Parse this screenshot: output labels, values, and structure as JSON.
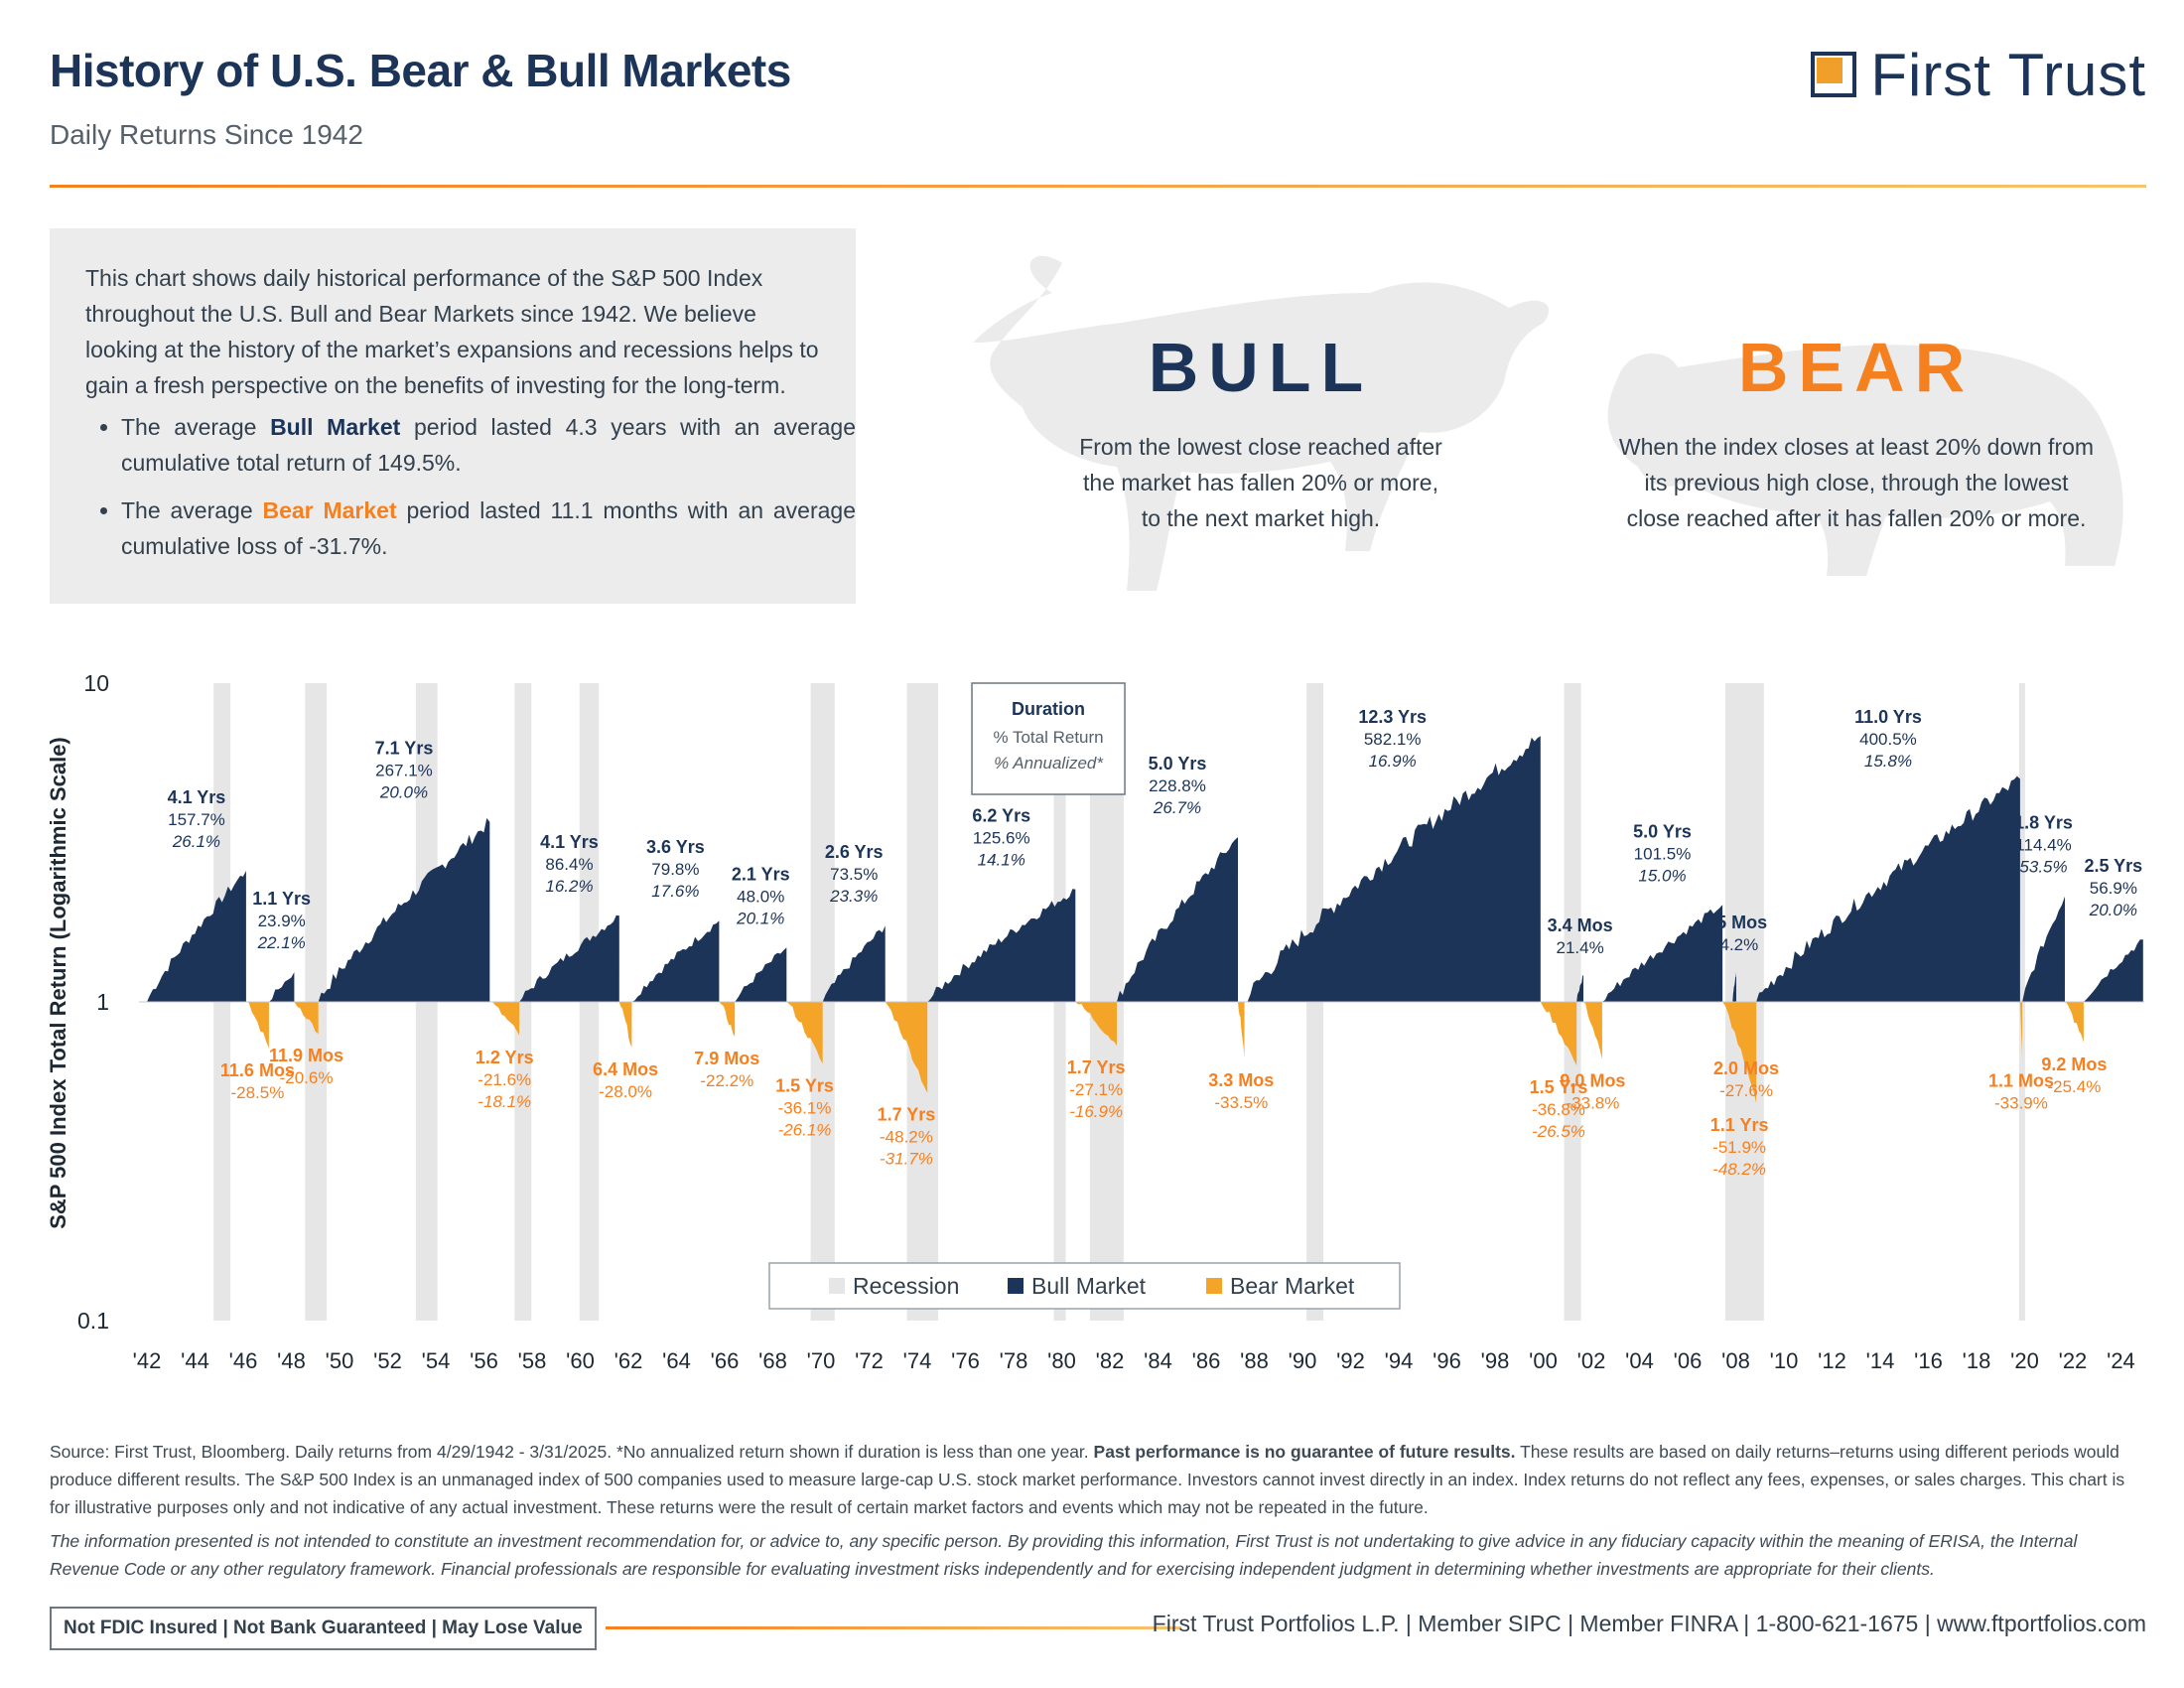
{
  "header": {
    "title": "History of U.S. Bear & Bull Markets",
    "subtitle": "Daily Returns Since 1942",
    "logo_text": "First Trust"
  },
  "intro": {
    "paragraph": "This chart shows daily historical performance of the S&P 500 Index throughout the U.S. Bull and Bear Markets since 1942. We believe looking at the history of the market’s expansions and recessions helps to gain a fresh perspective on the benefits of investing for the long-term.",
    "bullet1_pre": "The average",
    "bullet1_term": "Bull Market",
    "bullet1_post": "period lasted 4.3 years with an average cumulative total return of 149.5%.",
    "bullet2_pre": "The average",
    "bullet2_term": "Bear Market",
    "bullet2_post": "period lasted 11.1 months with an average cumulative loss of -31.7%."
  },
  "definitions": {
    "bull_heading": "BULL",
    "bull_text": [
      "From the lowest close reached after",
      "the market has fallen 20% or more,",
      "to the next market high."
    ],
    "bear_heading": "BEAR",
    "bear_text": [
      "When the index closes at least 20% down from",
      "its previous high close, through the lowest",
      "close reached after it has fallen 20% or more."
    ]
  },
  "colors": {
    "bull": "#1c3458",
    "bear": "#f5a42a",
    "bear_text": "#f58020",
    "recession": "#e6e6e6"
  },
  "chart_data": {
    "type": "area",
    "ylabel": "S&P 500 Index Total Return (Logarithmic Scale)",
    "yscale": "log",
    "ylim": [
      0.1,
      10
    ],
    "yticks": [
      "10",
      "1",
      "0.1"
    ],
    "xlim": [
      1942,
      2025.3
    ],
    "xticks": [
      "'42",
      "'44",
      "'46",
      "'48",
      "'50",
      "'52",
      "'54",
      "'56",
      "'58",
      "'60",
      "'62",
      "'64",
      "'66",
      "'68",
      "'70",
      "'72",
      "'74",
      "'76",
      "'78",
      "'80",
      "'82",
      "'84",
      "'86",
      "'88",
      "'90",
      "'92",
      "'94",
      "'96",
      "'98",
      "'00",
      "'02",
      "'04",
      "'06",
      "'08",
      "'10",
      "'12",
      "'14",
      "'16",
      "'18",
      "'20",
      "'22",
      "'24"
    ],
    "key": {
      "title": "Duration",
      "line2": "% Total Return",
      "line3": "% Annualized*"
    },
    "legend": {
      "placement": "bottom-center",
      "items": [
        "Recession",
        "Bull Market",
        "Bear Market"
      ]
    },
    "recessions": [
      [
        1945.1,
        1945.8
      ],
      [
        1948.9,
        1949.8
      ],
      [
        1953.5,
        1954.4
      ],
      [
        1957.6,
        1958.3
      ],
      [
        1960.3,
        1961.1
      ],
      [
        1969.9,
        1970.9
      ],
      [
        1973.9,
        1975.2
      ],
      [
        1980.0,
        1980.5
      ],
      [
        1981.5,
        1982.9
      ],
      [
        1990.5,
        1991.2
      ],
      [
        2001.2,
        2001.9
      ],
      [
        2007.9,
        2009.5
      ],
      [
        2020.1,
        2020.3
      ]
    ],
    "bull_markets": [
      {
        "start": 1942.33,
        "end": 1946.45,
        "duration": "4.1 Yrs",
        "total": "157.7%",
        "annualized": "26.1%",
        "return": 1.577
      },
      {
        "start": 1947.4,
        "end": 1948.45,
        "duration": "1.1 Yrs",
        "total": "23.9%",
        "annualized": "22.1%",
        "return": 0.239
      },
      {
        "start": 1949.45,
        "end": 1956.57,
        "duration": "7.1 Yrs",
        "total": "267.1%",
        "annualized": "20.0%",
        "return": 2.671
      },
      {
        "start": 1957.8,
        "end": 1961.95,
        "duration": "4.1 Yrs",
        "total": "86.4%",
        "annualized": "16.2%",
        "return": 0.864
      },
      {
        "start": 1962.47,
        "end": 1966.1,
        "duration": "3.6 Yrs",
        "total": "79.8%",
        "annualized": "17.6%",
        "return": 0.798
      },
      {
        "start": 1966.75,
        "end": 1968.9,
        "duration": "2.1 Yrs",
        "total": "48.0%",
        "annualized": "20.1%",
        "return": 0.48
      },
      {
        "start": 1970.4,
        "end": 1973.0,
        "duration": "2.6 Yrs",
        "total": "73.5%",
        "annualized": "23.3%",
        "return": 0.735
      },
      {
        "start": 1974.75,
        "end": 1980.9,
        "duration": "6.2 Yrs",
        "total": "125.6%",
        "annualized": "14.1%",
        "return": 1.256
      },
      {
        "start": 1982.62,
        "end": 1987.65,
        "duration": "5.0 Yrs",
        "total": "228.8%",
        "annualized": "26.7%",
        "return": 2.288
      },
      {
        "start": 1987.92,
        "end": 2000.22,
        "duration": "12.3 Yrs",
        "total": "582.1%",
        "annualized": "16.9%",
        "return": 5.821
      },
      {
        "start": 2001.72,
        "end": 2002.0,
        "duration": "3.4 Mos",
        "total": "21.4%",
        "annualized": "",
        "return": 0.214
      },
      {
        "start": 2002.78,
        "end": 2007.78,
        "duration": "5.0 Yrs",
        "total": "101.5%",
        "annualized": "15.0%",
        "return": 1.015
      },
      {
        "start": 2008.2,
        "end": 2008.35,
        "duration": "1.5 Mos",
        "total": "24.2%",
        "annualized": "",
        "return": 0.242
      },
      {
        "start": 2009.18,
        "end": 2020.14,
        "duration": "11.0 Yrs",
        "total": "400.5%",
        "annualized": "15.8%",
        "return": 4.005
      },
      {
        "start": 2020.23,
        "end": 2022.0,
        "duration": "1.8 Yrs",
        "total": "114.4%",
        "annualized": "53.5%",
        "return": 1.144
      },
      {
        "start": 2022.78,
        "end": 2025.25,
        "duration": "2.5 Yrs",
        "total": "56.9%",
        "annualized": "20.0%",
        "return": 0.569
      }
    ],
    "bear_markets": [
      {
        "start": 1946.45,
        "end": 1947.4,
        "duration": "11.6 Mos",
        "total": "-28.5%",
        "annualized": "",
        "return": -0.285
      },
      {
        "start": 1948.45,
        "end": 1949.45,
        "duration": "11.9 Mos",
        "total": "-20.6%",
        "annualized": "",
        "return": -0.206
      },
      {
        "start": 1956.57,
        "end": 1957.8,
        "duration": "1.2 Yrs",
        "total": "-21.6%",
        "annualized": "-18.1%",
        "return": -0.216
      },
      {
        "start": 1961.95,
        "end": 1962.47,
        "duration": "6.4 Mos",
        "total": "-28.0%",
        "annualized": "",
        "return": -0.28
      },
      {
        "start": 1966.1,
        "end": 1966.75,
        "duration": "7.9 Mos",
        "total": "-22.2%",
        "annualized": "",
        "return": -0.222
      },
      {
        "start": 1968.9,
        "end": 1970.4,
        "duration": "1.5 Yrs",
        "total": "-36.1%",
        "annualized": "-26.1%",
        "return": -0.361
      },
      {
        "start": 1973.0,
        "end": 1974.75,
        "duration": "1.7 Yrs",
        "total": "-48.2%",
        "annualized": "-31.7%",
        "return": -0.482
      },
      {
        "start": 1980.9,
        "end": 1982.62,
        "duration": "1.7 Yrs",
        "total": "-27.1%",
        "annualized": "-16.9%",
        "return": -0.271
      },
      {
        "start": 1987.65,
        "end": 1987.92,
        "duration": "3.3 Mos",
        "total": "-33.5%",
        "annualized": "",
        "return": -0.335
      },
      {
        "start": 2000.22,
        "end": 2001.72,
        "duration": "1.5 Yrs",
        "total": "-36.8%",
        "annualized": "-26.5%",
        "return": -0.368
      },
      {
        "start": 2002.0,
        "end": 2002.78,
        "duration": "9.0 Mos",
        "total": "-33.8%",
        "annualized": "",
        "return": -0.338
      },
      {
        "start": 2007.78,
        "end": 2009.18,
        "duration": "1.1 Yrs",
        "total": "-51.9%",
        "annualized": "-48.2%",
        "return": -0.519
      },
      {
        "start": 2008.35,
        "end": 2009.18,
        "duration": "2.0 Mos",
        "total": "-27.6%",
        "annualized": "",
        "return": -0.276
      },
      {
        "start": 2020.14,
        "end": 2020.23,
        "duration": "1.1 Mos",
        "total": "-33.9%",
        "annualized": "",
        "return": -0.339
      },
      {
        "start": 2022.0,
        "end": 2022.78,
        "duration": "9.2 Mos",
        "total": "-25.4%",
        "annualized": "",
        "return": -0.254
      }
    ]
  },
  "footer": {
    "source": "Source: First Trust, Bloomberg. Daily returns from 4/29/1942 - 3/31/2025. *No annualized return shown if duration is less than one year.",
    "source_bold": "Past performance is no guarantee of future results.",
    "source_rest": "These results are based on daily returns–returns using different periods would produce different results. The S&P 500 Index is an unmanaged index of 500 companies used to measure large-cap U.S. stock market performance. Investors cannot invest directly in an index. Index returns do not reflect any fees, expenses, or sales charges. This chart is for illustrative purposes only and not indicative of any actual investment. These returns were the result of certain market factors and events which may not be repeated in the future.",
    "legal": "The information presented is not intended to constitute an investment recommendation for, or advice to, any specific person. By providing this information, First Trust is not undertaking to give advice in any fiduciary capacity within the meaning of ERISA, the Internal Revenue Code or any other regulatory framework. Financial professionals are responsible for evaluating investment risks independently and for exercising independent judgment in determining whether investments are appropriate for their clients.",
    "badge": "Not FDIC Insured | Not Bank Guaranteed | May Lose Value",
    "contact": "First Trust Portfolios L.P. | Member SIPC | Member FINRA | 1-800-621-1675 | www.ftportfolios.com"
  }
}
